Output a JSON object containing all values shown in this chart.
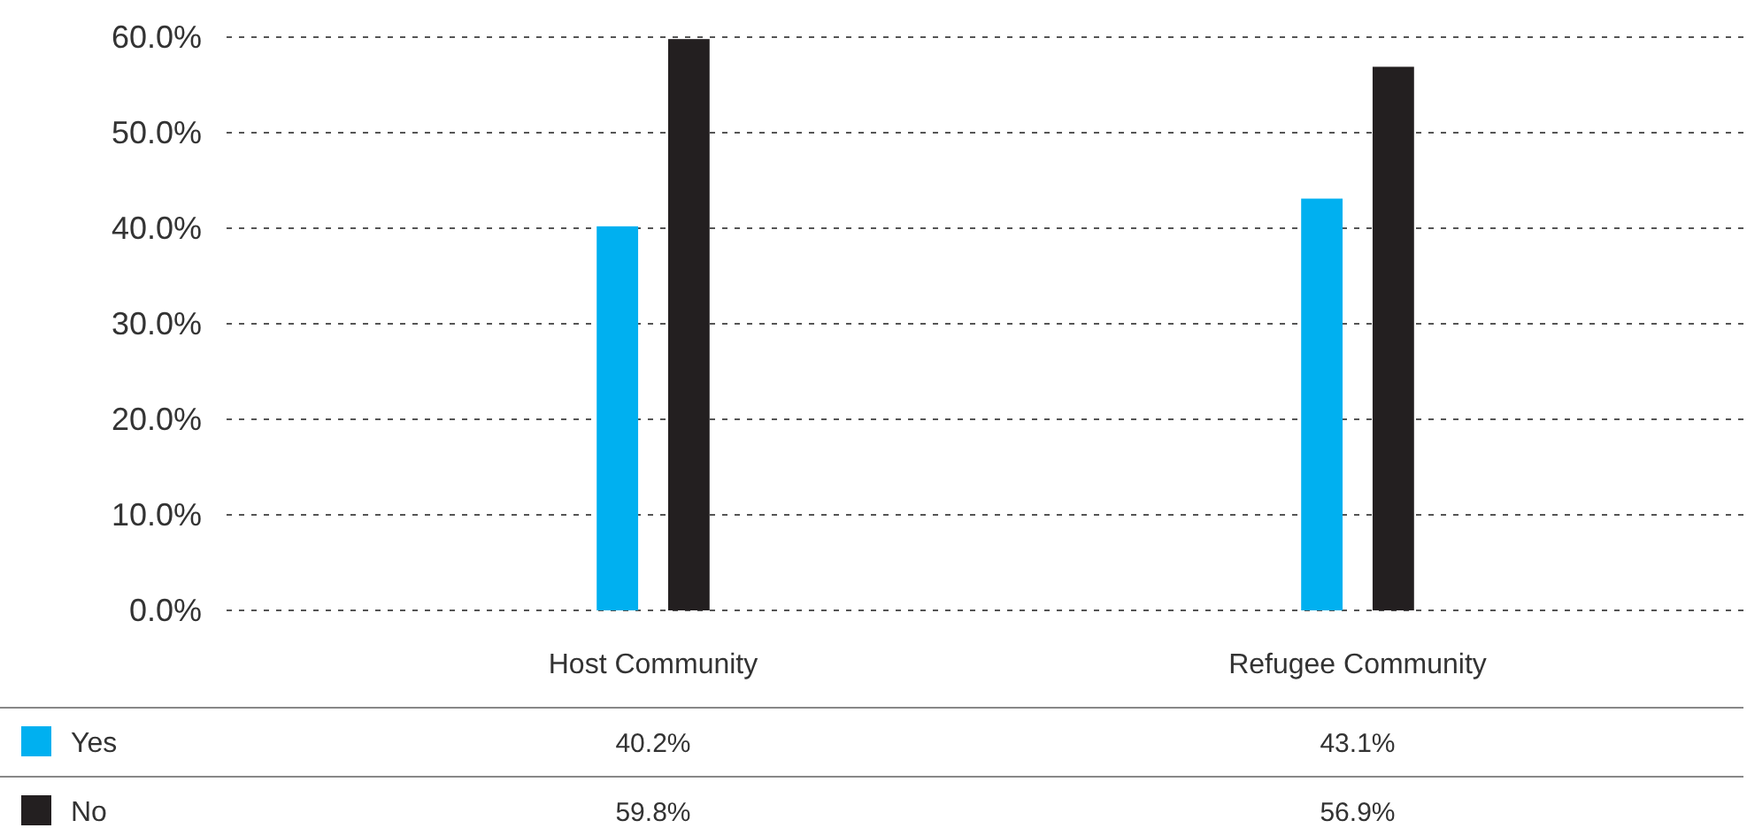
{
  "chart_data": {
    "type": "bar",
    "categories": [
      "Host Community",
      "Refugee Community"
    ],
    "series": [
      {
        "name": "Yes",
        "color": "#00b0f0",
        "values": [
          40.2,
          43.1
        ],
        "value_labels": [
          "40.2%",
          "43.1%"
        ]
      },
      {
        "name": "No",
        "color": "#231f20",
        "values": [
          59.8,
          56.9
        ],
        "value_labels": [
          "59.8%",
          "56.9%"
        ]
      }
    ],
    "ylim": [
      0,
      60
    ],
    "yticks": [
      {
        "value": 0,
        "label": "0.0%"
      },
      {
        "value": 10,
        "label": "10.0%"
      },
      {
        "value": 20,
        "label": "20.0%"
      },
      {
        "value": 30,
        "label": "30.0%"
      },
      {
        "value": 40,
        "label": "40.0%"
      },
      {
        "value": 50,
        "label": "50.0%"
      },
      {
        "value": 60,
        "label": "60.0%"
      }
    ],
    "grid": "y",
    "legend": "bottom"
  }
}
